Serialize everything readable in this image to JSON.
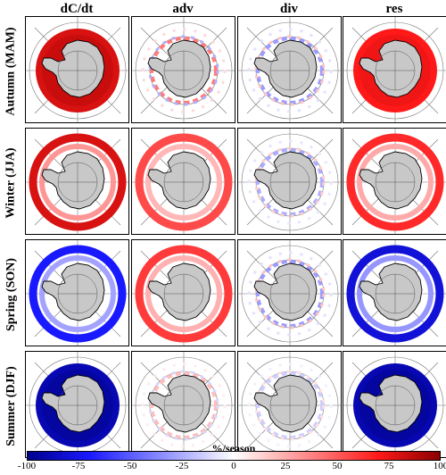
{
  "figure": {
    "columns": [
      "dC/dt",
      "adv",
      "div",
      "res"
    ],
    "rows": [
      "Autumn (MAM)",
      "Winter (JJA)",
      "Spring (SON)",
      "Summer (DJF)"
    ]
  },
  "colorbar": {
    "label": "%/season",
    "ticks": [
      "-100",
      "-75",
      "-50",
      "-25",
      "0",
      "25",
      "50",
      "75",
      "100"
    ],
    "range": [
      -100,
      100
    ],
    "colors": {
      "negative": "#00008b",
      "zero": "#ffffff",
      "positive": "#8b0000"
    }
  },
  "chart_data": {
    "type": "heatmap",
    "description_fields": {
      "columns": [
        "dC/dt",
        "adv",
        "div",
        "res"
      ],
      "rows": [
        "Autumn (MAM)",
        "Winter (JJA)",
        "Spring (SON)",
        "Summer (DJF)"
      ],
      "colorbar_label": "%/season",
      "clim": [
        -100,
        100
      ]
    },
    "panels": [
      {
        "row": "Autumn (MAM)",
        "col": "dC/dt",
        "pattern": "ring",
        "value": 80
      },
      {
        "row": "Autumn (MAM)",
        "col": "adv",
        "pattern": "coastal-mixed",
        "value": 40
      },
      {
        "row": "Autumn (MAM)",
        "col": "div",
        "pattern": "coastal-mixed",
        "value": -30
      },
      {
        "row": "Autumn (MAM)",
        "col": "res",
        "pattern": "ring",
        "value": 70
      },
      {
        "row": "Winter (JJA)",
        "col": "dC/dt",
        "pattern": "outer-ring",
        "value": 80
      },
      {
        "row": "Winter (JJA)",
        "col": "adv",
        "pattern": "outer-ring",
        "value": 55
      },
      {
        "row": "Winter (JJA)",
        "col": "div",
        "pattern": "coastal-mixed",
        "value": -25
      },
      {
        "row": "Winter (JJA)",
        "col": "res",
        "pattern": "outer-ring",
        "value": 65
      },
      {
        "row": "Spring (SON)",
        "col": "dC/dt",
        "pattern": "outer-ring",
        "value": -70
      },
      {
        "row": "Spring (SON)",
        "col": "adv",
        "pattern": "outer-ring",
        "value": 60
      },
      {
        "row": "Spring (SON)",
        "col": "div",
        "pattern": "coastal-mixed",
        "value": -30
      },
      {
        "row": "Spring (SON)",
        "col": "res",
        "pattern": "outer-ring",
        "value": -80
      },
      {
        "row": "Summer (DJF)",
        "col": "dC/dt",
        "pattern": "ring",
        "value": -90
      },
      {
        "row": "Summer (DJF)",
        "col": "adv",
        "pattern": "coastal-mixed",
        "value": 20
      },
      {
        "row": "Summer (DJF)",
        "col": "div",
        "pattern": "coastal-mixed",
        "value": -15
      },
      {
        "row": "Summer (DJF)",
        "col": "res",
        "pattern": "ring",
        "value": -90
      }
    ]
  }
}
